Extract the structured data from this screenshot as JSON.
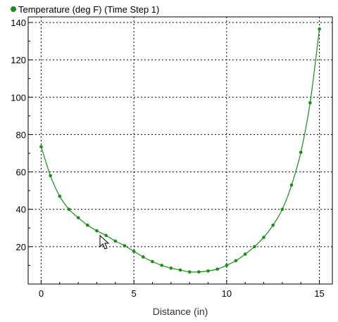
{
  "chart_data": {
    "type": "line",
    "title": "",
    "xlabel": "Distance (in)",
    "ylabel": "",
    "xlim": [
      -0.7,
      15.7
    ],
    "ylim": [
      0,
      143
    ],
    "x_ticks": [
      0,
      5,
      10,
      15
    ],
    "y_ticks": [
      20,
      40,
      60,
      80,
      100,
      120,
      140
    ],
    "x_minor_step": 1,
    "y_minor_step": 10,
    "grid": true,
    "grid_style": "dotted",
    "legend_position": "top-left",
    "colors": {
      "series": "#1a8c1a",
      "grid": "#000000",
      "axis": "#000000"
    },
    "series": [
      {
        "name": "Temperature (deg F) (Time Step 1)",
        "x": [
          0,
          0.5,
          1,
          1.5,
          2,
          2.5,
          3,
          3.5,
          4,
          4.5,
          5,
          5.5,
          6,
          6.5,
          7,
          7.5,
          8,
          8.5,
          9,
          9.5,
          10,
          10.5,
          11,
          11.5,
          12,
          12.5,
          13,
          13.5,
          14,
          14.5,
          15
        ],
        "y": [
          73.5,
          58,
          47,
          40,
          35.5,
          31.5,
          28.5,
          26,
          23,
          20.5,
          17.5,
          14.5,
          12,
          10,
          8.5,
          7.5,
          6.5,
          6.5,
          7,
          8,
          10,
          12.5,
          16,
          20,
          25,
          31.5,
          40,
          53,
          70.5,
          97,
          136.5
        ]
      }
    ]
  }
}
